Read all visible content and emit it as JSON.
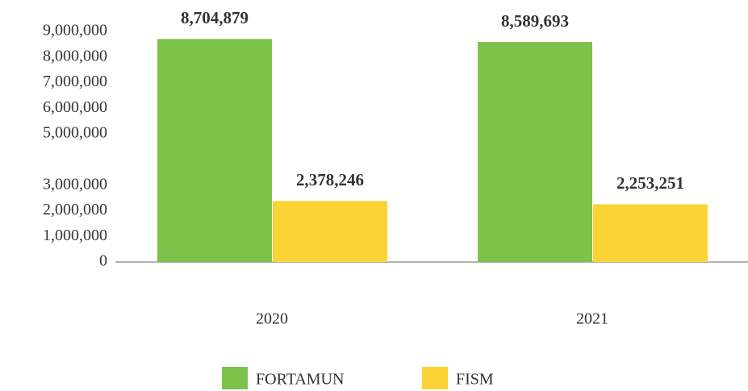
{
  "chart_data": {
    "type": "bar",
    "categories": [
      "2020",
      "2021"
    ],
    "series": [
      {
        "name": "FORTAMUN",
        "color": "#7dc24b",
        "values": [
          8704879,
          8589693
        ],
        "value_labels": [
          "8,704,879",
          "8,589,693"
        ]
      },
      {
        "name": "FISM",
        "color": "#fbd334",
        "values": [
          2378246,
          2253251
        ],
        "value_labels": [
          "2,378,246",
          "2,253,251"
        ]
      }
    ],
    "ylim": [
      0,
      9000000
    ],
    "yticks": [
      0,
      {
        "value": 1000000,
        "label": "1,000,000"
      },
      {
        "value": 2000000,
        "label": "2,000,000"
      },
      {
        "value": 3000000,
        "label": "3,000,000"
      },
      {
        "value": 5000000,
        "label": "5,000,000"
      },
      {
        "value": 6000000,
        "label": "6,000,000"
      },
      {
        "value": 7000000,
        "label": "7,000,000"
      },
      {
        "value": 8000000,
        "label": "8,000,000"
      },
      {
        "value": 9000000,
        "label": "9,000,000"
      }
    ],
    "grid": false
  }
}
